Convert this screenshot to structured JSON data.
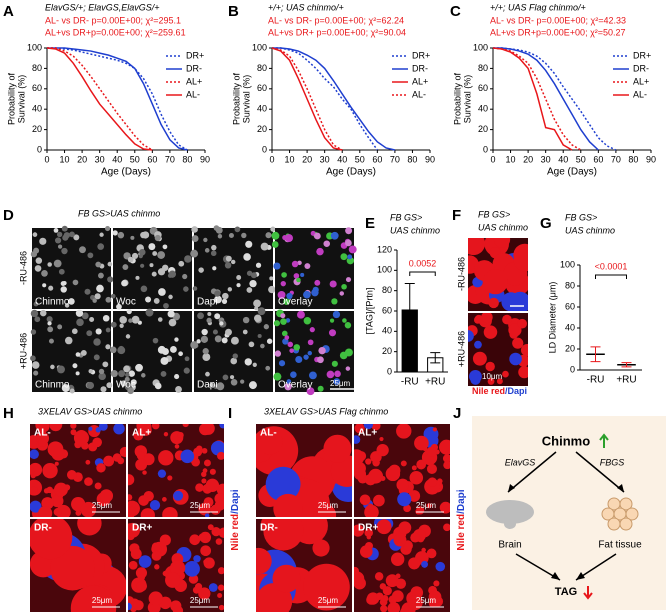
{
  "chart_data": [
    {
      "type": "line",
      "panel": "A",
      "subtitle": "ElavGS/+; ElavGS,ElavGS/+",
      "annotations": [
        "AL- vs DR- p=0.00E+00; χ²=295.1",
        "AL+vs DR+p=0.00E+00; χ²=259.61"
      ],
      "ylabel": [
        "Probability of",
        "Survival (%)"
      ],
      "xlabel": "Age (Days)",
      "x": [
        0,
        5,
        10,
        15,
        20,
        25,
        30,
        35,
        40,
        45,
        50,
        55,
        60,
        65,
        70,
        75,
        80
      ],
      "xlim": [
        0,
        90
      ],
      "xticks": [
        0,
        10,
        20,
        30,
        40,
        50,
        60,
        70,
        80,
        90
      ],
      "ylim": [
        0,
        100
      ],
      "yticks": [
        0,
        20,
        40,
        60,
        80,
        100
      ],
      "series": [
        {
          "name": "DR+",
          "color": "#1f3fcf",
          "linestyle": "dotted",
          "values": [
            100,
            100,
            99,
            98,
            96,
            94,
            92,
            90,
            88,
            85,
            80,
            70,
            55,
            35,
            18,
            5,
            0
          ]
        },
        {
          "name": "DR-",
          "color": "#1f3fcf",
          "linestyle": "solid",
          "values": [
            100,
            100,
            100,
            99,
            98,
            97,
            95,
            93,
            90,
            87,
            80,
            65,
            45,
            25,
            10,
            2,
            0
          ]
        },
        {
          "name": "AL+",
          "color": "#e8171b",
          "linestyle": "dotted",
          "values": [
            100,
            100,
            97,
            92,
            83,
            72,
            60,
            48,
            36,
            25,
            14,
            5,
            0,
            null,
            null,
            null,
            null
          ]
        },
        {
          "name": "AL-",
          "color": "#e8171b",
          "linestyle": "solid",
          "values": [
            100,
            99,
            95,
            85,
            72,
            58,
            45,
            35,
            25,
            15,
            6,
            1,
            0,
            null,
            null,
            null,
            null
          ]
        }
      ]
    },
    {
      "type": "line",
      "panel": "B",
      "subtitle": "+/+; UAS chinmo/+",
      "annotations": [
        "AL- vs DR- p=0.00E+00; χ²=62.24",
        "AL+vs DR+ p=0.00E+00; χ²=90.04"
      ],
      "ylabel": [
        "Probability of",
        "Survival (%)"
      ],
      "xlabel": "Age (Days)",
      "x": [
        0,
        5,
        10,
        15,
        20,
        25,
        30,
        35,
        40,
        45,
        50,
        55,
        60,
        65,
        70
      ],
      "xlim": [
        0,
        90
      ],
      "xticks": [
        0,
        10,
        20,
        30,
        40,
        50,
        60,
        70,
        80,
        90
      ],
      "ylim": [
        0,
        100
      ],
      "yticks": [
        0,
        20,
        40,
        60,
        80,
        100
      ],
      "series": [
        {
          "name": "DR+",
          "color": "#1f3fcf",
          "linestyle": "dotted",
          "values": [
            100,
            100,
            98,
            95,
            88,
            80,
            70,
            62,
            50,
            40,
            25,
            12,
            0,
            null,
            null
          ]
        },
        {
          "name": "DR-",
          "color": "#1f3fcf",
          "linestyle": "solid",
          "values": [
            100,
            100,
            99,
            97,
            93,
            88,
            80,
            68,
            55,
            42,
            30,
            18,
            8,
            2,
            0
          ]
        },
        {
          "name": "AL+",
          "color": "#e8171b",
          "linestyle": "solid",
          "values": [
            100,
            97,
            88,
            70,
            50,
            30,
            12,
            2,
            0,
            null,
            null,
            null,
            null,
            null,
            null
          ]
        },
        {
          "name": "AL-",
          "color": "#e8171b",
          "linestyle": "dotted",
          "values": [
            100,
            98,
            92,
            78,
            60,
            40,
            20,
            5,
            0,
            null,
            null,
            null,
            null,
            null,
            null
          ]
        }
      ]
    },
    {
      "type": "line",
      "panel": "C",
      "subtitle": "+/+; UAS Flag chinmo/+",
      "annotations": [
        "AL- vs DR- p=0.00E+00; χ²=42.33",
        "AL+vs DR+p=0.00E+00; χ²=50.27"
      ],
      "ylabel": [
        "Probability of",
        "Survival (%)"
      ],
      "xlabel": "Age (Days)",
      "x": [
        0,
        5,
        10,
        15,
        20,
        25,
        30,
        35,
        40,
        45,
        50,
        55,
        60,
        65,
        70
      ],
      "xlim": [
        0,
        90
      ],
      "xticks": [
        0,
        10,
        20,
        30,
        40,
        50,
        60,
        70,
        80,
        90
      ],
      "ylim": [
        0,
        100
      ],
      "yticks": [
        0,
        20,
        40,
        60,
        80,
        100
      ],
      "series": [
        {
          "name": "DR+",
          "color": "#1f3fcf",
          "linestyle": "dotted",
          "values": [
            100,
            100,
            99,
            98,
            96,
            92,
            85,
            75,
            62,
            50,
            38,
            25,
            12,
            4,
            0
          ]
        },
        {
          "name": "DR-",
          "color": "#1f3fcf",
          "linestyle": "solid",
          "values": [
            100,
            100,
            99,
            97,
            94,
            88,
            78,
            65,
            50,
            35,
            20,
            8,
            0,
            null,
            null
          ]
        },
        {
          "name": "AL+",
          "color": "#e8171b",
          "linestyle": "dotted",
          "values": [
            100,
            99,
            97,
            92,
            85,
            70,
            50,
            30,
            15,
            5,
            0,
            null,
            null,
            null,
            null
          ]
        },
        {
          "name": "AL-",
          "color": "#e8171b",
          "linestyle": "solid",
          "values": [
            100,
            99,
            96,
            90,
            80,
            55,
            22,
            20,
            5,
            0,
            null,
            null,
            null,
            null,
            null
          ]
        }
      ]
    },
    {
      "type": "bar",
      "panel": "E",
      "title": [
        "FB GS>",
        "UAS chinmo"
      ],
      "ylabel": "[TAG]/[Prtn]",
      "categories": [
        "-RU",
        "+RU"
      ],
      "values": [
        61,
        14
      ],
      "errors": [
        26,
        5
      ],
      "colors": [
        "#000000",
        "#ffffff"
      ],
      "ylim": [
        0,
        120
      ],
      "yticks": [
        0,
        20,
        40,
        60,
        80,
        100,
        120
      ],
      "annotation": "0.0052"
    },
    {
      "type": "bar",
      "panel": "G",
      "title": [
        "FB GS>",
        "UAS chinmo"
      ],
      "ylabel": "LD Diameter (μm)",
      "categories": [
        "-RU",
        "+RU"
      ],
      "values": [
        15,
        5
      ],
      "errors": [
        7,
        2
      ],
      "colors": [
        "#e8171b",
        "#e8171b"
      ],
      "ylim": [
        0,
        100
      ],
      "yticks": [
        0,
        20,
        40,
        60,
        80,
        100
      ],
      "annotation": "<0.0001"
    }
  ],
  "images": {
    "D": {
      "panel": "D",
      "title": "FB GS>UAS chinmo",
      "rows": [
        "-RU-486",
        "+RU-486"
      ],
      "columns": [
        "Chinmo",
        "Woc",
        "Dapi",
        "Overlay"
      ],
      "scale": "25μm"
    },
    "F": {
      "panel": "F",
      "title": [
        "FB GS>",
        "UAS chinmo"
      ],
      "rows": [
        "-RU-486",
        "+RU-486"
      ],
      "stain": [
        "Nile red",
        "/Dapi"
      ],
      "scale": "10μm"
    },
    "H": {
      "panel": "H",
      "title": "3XELAV GS>UAS chinmo",
      "quadrants": [
        "AL-",
        "AL+",
        "DR-",
        "DR+"
      ],
      "scale": "25μm",
      "stain": [
        "Nile red",
        "/Dapi"
      ]
    },
    "I": {
      "panel": "I",
      "title": "3XELAV GS>UAS Flag chinmo",
      "quadrants": [
        "AL-",
        "AL+",
        "DR-",
        "DR+"
      ],
      "scale": "25μm",
      "stain": [
        "Nile red",
        "/Dapi"
      ]
    }
  },
  "diagram": {
    "panel": "J",
    "nodes": [
      "Chinmo",
      "ElavGS",
      "FBGS",
      "Brain",
      "Fat tissue",
      "TAG"
    ]
  }
}
